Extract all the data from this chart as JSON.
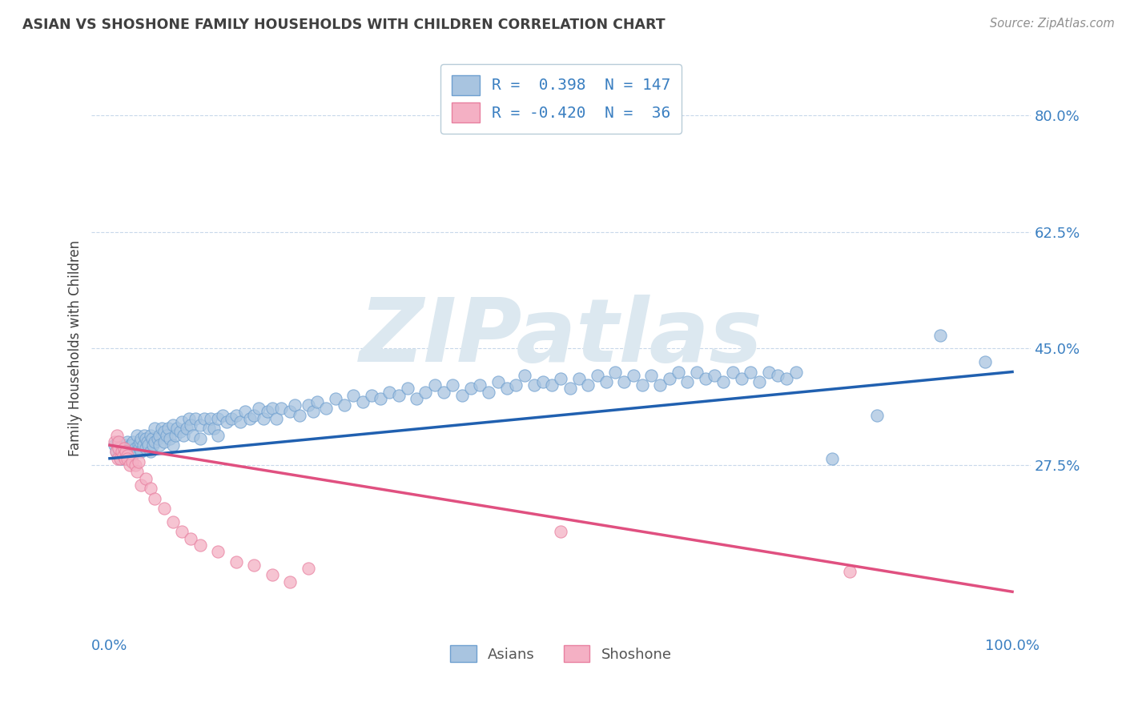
{
  "title": "ASIAN VS SHOSHONE FAMILY HOUSEHOLDS WITH CHILDREN CORRELATION CHART",
  "source_text": "Source: ZipAtlas.com",
  "ylabel": "Family Households with Children",
  "watermark": "ZIPatlas",
  "xlim": [
    -0.02,
    1.02
  ],
  "ylim": [
    0.02,
    0.88
  ],
  "yticks": [
    0.275,
    0.45,
    0.625,
    0.8
  ],
  "ytick_labels": [
    "27.5%",
    "45.0%",
    "62.5%",
    "80.0%"
  ],
  "xtick_labels": [
    "0.0%",
    "100.0%"
  ],
  "asian_color": "#a8c4e0",
  "asian_edge_color": "#6fa0d0",
  "shoshone_color": "#f4b0c4",
  "shoshone_edge_color": "#e880a0",
  "asian_line_color": "#2060b0",
  "shoshone_line_color": "#e05080",
  "legend_text_color": "#3a7fc1",
  "tick_color": "#3a7fc1",
  "grid_color": "#c8d8ea",
  "background_color": "#ffffff",
  "title_color": "#404040",
  "source_color": "#909090",
  "ylabel_color": "#404040",
  "watermark_color": "#dce8f0",
  "asian_trend_x0": 0.0,
  "asian_trend_y0": 0.285,
  "asian_trend_x1": 1.0,
  "asian_trend_y1": 0.415,
  "shoshone_trend_x0": 0.0,
  "shoshone_trend_y0": 0.305,
  "shoshone_trend_x1": 1.0,
  "shoshone_trend_y1": 0.085,
  "asian_x": [
    0.005,
    0.007,
    0.009,
    0.01,
    0.01,
    0.012,
    0.013,
    0.015,
    0.015,
    0.016,
    0.017,
    0.018,
    0.018,
    0.019,
    0.02,
    0.02,
    0.022,
    0.022,
    0.023,
    0.024,
    0.025,
    0.025,
    0.026,
    0.028,
    0.028,
    0.03,
    0.03,
    0.032,
    0.033,
    0.034,
    0.035,
    0.035,
    0.037,
    0.038,
    0.04,
    0.04,
    0.042,
    0.043,
    0.045,
    0.045,
    0.047,
    0.048,
    0.05,
    0.05,
    0.053,
    0.055,
    0.055,
    0.058,
    0.06,
    0.06,
    0.063,
    0.065,
    0.067,
    0.07,
    0.07,
    0.073,
    0.075,
    0.078,
    0.08,
    0.082,
    0.085,
    0.088,
    0.09,
    0.092,
    0.095,
    0.1,
    0.1,
    0.105,
    0.11,
    0.112,
    0.115,
    0.12,
    0.12,
    0.125,
    0.13,
    0.135,
    0.14,
    0.145,
    0.15,
    0.155,
    0.16,
    0.165,
    0.17,
    0.175,
    0.18,
    0.185,
    0.19,
    0.2,
    0.205,
    0.21,
    0.22,
    0.225,
    0.23,
    0.24,
    0.25,
    0.26,
    0.27,
    0.28,
    0.29,
    0.3,
    0.31,
    0.32,
    0.33,
    0.34,
    0.35,
    0.36,
    0.37,
    0.38,
    0.39,
    0.4,
    0.41,
    0.42,
    0.43,
    0.44,
    0.45,
    0.46,
    0.47,
    0.48,
    0.49,
    0.5,
    0.51,
    0.52,
    0.53,
    0.54,
    0.55,
    0.56,
    0.57,
    0.58,
    0.59,
    0.6,
    0.61,
    0.62,
    0.63,
    0.64,
    0.65,
    0.66,
    0.67,
    0.68,
    0.69,
    0.7,
    0.71,
    0.72,
    0.73,
    0.74,
    0.75,
    0.76,
    0.8,
    0.85,
    0.92,
    0.97
  ],
  "asian_y": [
    0.305,
    0.295,
    0.31,
    0.29,
    0.3,
    0.285,
    0.295,
    0.3,
    0.285,
    0.295,
    0.29,
    0.3,
    0.305,
    0.285,
    0.295,
    0.31,
    0.3,
    0.29,
    0.305,
    0.295,
    0.305,
    0.29,
    0.31,
    0.295,
    0.3,
    0.32,
    0.295,
    0.305,
    0.3,
    0.31,
    0.315,
    0.295,
    0.305,
    0.32,
    0.315,
    0.3,
    0.31,
    0.305,
    0.32,
    0.295,
    0.315,
    0.305,
    0.33,
    0.31,
    0.315,
    0.32,
    0.305,
    0.33,
    0.325,
    0.31,
    0.32,
    0.33,
    0.315,
    0.335,
    0.305,
    0.32,
    0.33,
    0.325,
    0.34,
    0.32,
    0.33,
    0.345,
    0.335,
    0.32,
    0.345,
    0.335,
    0.315,
    0.345,
    0.33,
    0.345,
    0.33,
    0.345,
    0.32,
    0.35,
    0.34,
    0.345,
    0.35,
    0.34,
    0.355,
    0.345,
    0.35,
    0.36,
    0.345,
    0.355,
    0.36,
    0.345,
    0.36,
    0.355,
    0.365,
    0.35,
    0.365,
    0.355,
    0.37,
    0.36,
    0.375,
    0.365,
    0.38,
    0.37,
    0.38,
    0.375,
    0.385,
    0.38,
    0.39,
    0.375,
    0.385,
    0.395,
    0.385,
    0.395,
    0.38,
    0.39,
    0.395,
    0.385,
    0.4,
    0.39,
    0.395,
    0.41,
    0.395,
    0.4,
    0.395,
    0.405,
    0.39,
    0.405,
    0.395,
    0.41,
    0.4,
    0.415,
    0.4,
    0.41,
    0.395,
    0.41,
    0.395,
    0.405,
    0.415,
    0.4,
    0.415,
    0.405,
    0.41,
    0.4,
    0.415,
    0.405,
    0.415,
    0.4,
    0.415,
    0.41,
    0.405,
    0.415,
    0.285,
    0.35,
    0.47,
    0.43
  ],
  "shoshone_x": [
    0.005,
    0.007,
    0.008,
    0.009,
    0.01,
    0.01,
    0.012,
    0.013,
    0.015,
    0.016,
    0.017,
    0.018,
    0.02,
    0.02,
    0.022,
    0.025,
    0.028,
    0.03,
    0.032,
    0.035,
    0.04,
    0.045,
    0.05,
    0.06,
    0.07,
    0.08,
    0.09,
    0.1,
    0.12,
    0.14,
    0.16,
    0.18,
    0.2,
    0.22,
    0.5,
    0.82
  ],
  "shoshone_y": [
    0.31,
    0.295,
    0.32,
    0.285,
    0.3,
    0.31,
    0.285,
    0.295,
    0.29,
    0.3,
    0.285,
    0.295,
    0.29,
    0.285,
    0.275,
    0.28,
    0.275,
    0.265,
    0.28,
    0.245,
    0.255,
    0.24,
    0.225,
    0.21,
    0.19,
    0.175,
    0.165,
    0.155,
    0.145,
    0.13,
    0.125,
    0.11,
    0.1,
    0.12,
    0.175,
    0.115
  ]
}
